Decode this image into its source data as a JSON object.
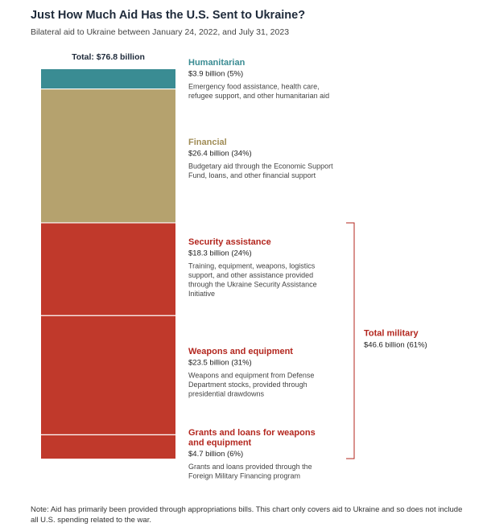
{
  "header": {
    "title": "Just How Much Aid Has the U.S. Sent to Ukraine?",
    "subtitle": "Bilateral aid to Ukraine between January 24, 2022, and July 31, 2023"
  },
  "chart_data": {
    "type": "bar",
    "stacked": true,
    "total_label": "Total: $76.8 billion",
    "total_value": 76.8,
    "unit": "billion USD",
    "categories": [
      "Humanitarian",
      "Financial",
      "Security assistance",
      "Weapons and equipment",
      "Grants and loans for weapons and equipment"
    ],
    "values": [
      3.9,
      26.4,
      18.3,
      23.5,
      4.7
    ],
    "segments": [
      {
        "name": "Humanitarian",
        "value": 3.9,
        "value_label": "$3.9 billion (5%)",
        "desc": [
          "Emergency food assistance, health care,",
          "refugee support, and other humanitarian aid"
        ],
        "color": "#3a8c93",
        "name_color": "#3a8c93"
      },
      {
        "name": "Financial",
        "value": 26.4,
        "value_label": "$26.4 billion (34%)",
        "desc": [
          "Budgetary aid through the Economic Support",
          "Fund, loans, and other financial support"
        ],
        "color": "#b5a26e",
        "name_color": "#a08c55"
      },
      {
        "name": "Security assistance",
        "value": 18.3,
        "value_label": "$18.3 billion (24%)",
        "desc": [
          "Training, equipment, weapons, logistics",
          "support, and other assistance provided",
          "through the Ukraine Security Assistance",
          "Initiative"
        ],
        "color": "#c0392b",
        "name_color": "#b3261e"
      },
      {
        "name": "Weapons and equipment",
        "value": 23.5,
        "value_label": "$23.5 billion (31%)",
        "desc": [
          "Weapons and equipment from Defense",
          "Department stocks, provided through",
          "presidential drawdowns"
        ],
        "color": "#c0392b",
        "name_color": "#b3261e"
      },
      {
        "name": [
          "Grants and loans for weapons",
          "and equipment"
        ],
        "value": 4.7,
        "value_label": "$4.7 billion (6%)",
        "desc": [
          "Grants and loans provided through the",
          "Foreign Military Financing program"
        ],
        "color": "#c0392b",
        "name_color": "#b3261e"
      }
    ],
    "bracket": {
      "label": "Total military",
      "value": 46.6,
      "value_label": "$46.6 billion (61%)",
      "color": "#b3261e"
    }
  },
  "note": "Note: Aid has primarily been provided through appropriations bills. This chart only covers aid to Ukraine and so does not include all U.S. spending related to the war."
}
